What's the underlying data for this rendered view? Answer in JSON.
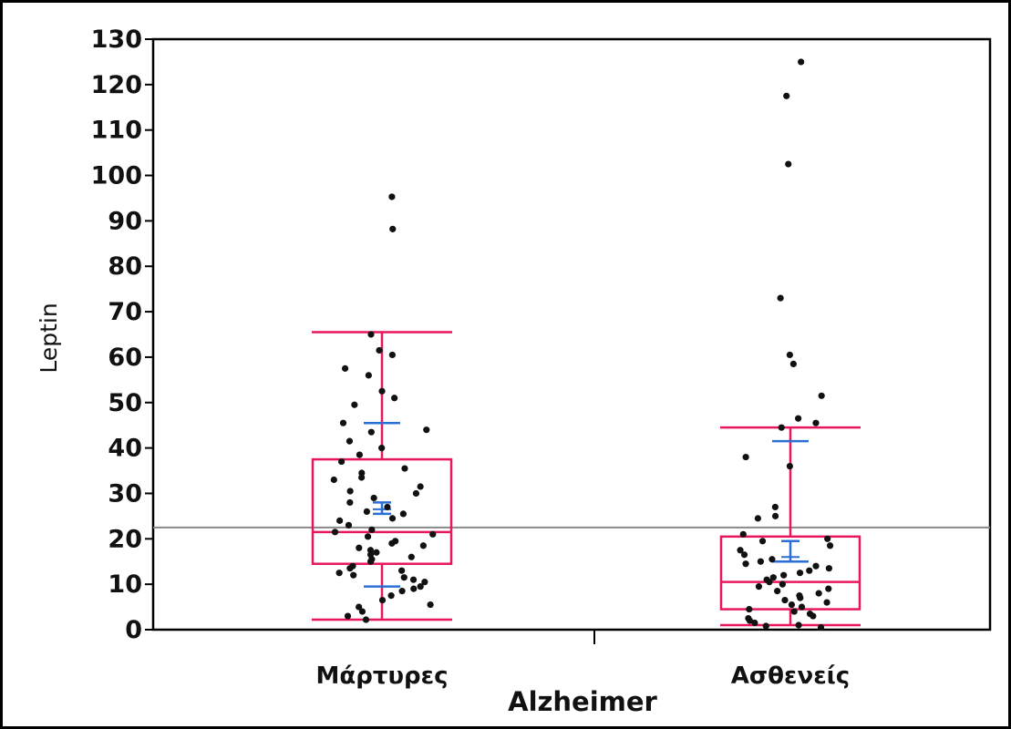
{
  "chart_data": {
    "type": "boxplot",
    "xlabel": "Alzheimer",
    "ylabel": "Leptin",
    "ylim": [
      0,
      130
    ],
    "yticks": [
      0,
      10,
      20,
      30,
      40,
      50,
      60,
      70,
      80,
      90,
      100,
      110,
      120,
      130
    ],
    "categories": [
      "Μάρτυρες",
      "Ασθενείς"
    ],
    "grand_mean": 22.5,
    "grid": false,
    "colors": {
      "box": "#e8175d",
      "mean_ci": "#2b6fd6",
      "points": "#111111",
      "reference_line": "#888888"
    },
    "groups": [
      {
        "name": "Μάρτυρες",
        "box": {
          "q1": 14.5,
          "median": 21.5,
          "q3": 37.5,
          "whisker_low": 2.2,
          "whisker_high": 65.5
        },
        "mean": 26.5,
        "mean_ci": [
          25.5,
          28.0
        ],
        "std_bars": [
          9.5,
          45.5
        ],
        "points": [
          95.3,
          88.2,
          65.0,
          61.5,
          60.5,
          57.5,
          56.0,
          52.5,
          51.0,
          49.5,
          45.5,
          44.0,
          43.5,
          41.5,
          40.0,
          38.5,
          37.0,
          35.5,
          34.5,
          33.5,
          33.0,
          31.5,
          30.5,
          30.0,
          29.0,
          28.0,
          27.0,
          26.0,
          25.5,
          24.5,
          24.0,
          23.0,
          22.0,
          21.5,
          21.0,
          20.5,
          19.5,
          19.0,
          18.5,
          18.0,
          17.5,
          17.0,
          16.5,
          16.0,
          15.5,
          15.0,
          14.0,
          13.5,
          13.0,
          12.5,
          12.0,
          11.5,
          11.0,
          10.5,
          9.5,
          9.0,
          8.5,
          7.5,
          6.5,
          5.5,
          5.0,
          4.0,
          3.0,
          2.2
        ]
      },
      {
        "name": "Ασθενείς",
        "box": {
          "q1": 4.5,
          "median": 10.5,
          "q3": 20.5,
          "whisker_low": 1.0,
          "whisker_high": 44.5
        },
        "mean": 16.0,
        "mean_ci": [
          15.0,
          19.5
        ],
        "std_bars": [
          15.0,
          41.5
        ],
        "points": [
          125.0,
          117.5,
          102.5,
          73.0,
          60.5,
          58.5,
          51.5,
          46.5,
          45.5,
          44.5,
          38.0,
          36.0,
          27.0,
          25.0,
          24.5,
          21.0,
          20.0,
          19.5,
          18.5,
          17.5,
          16.5,
          15.5,
          15.0,
          14.5,
          14.0,
          13.5,
          13.0,
          12.5,
          12.0,
          11.5,
          11.0,
          10.5,
          10.0,
          9.5,
          9.0,
          8.5,
          8.0,
          7.5,
          7.0,
          6.5,
          6.0,
          5.5,
          5.0,
          4.5,
          4.0,
          3.5,
          3.0,
          2.5,
          2.0,
          1.5,
          1.0,
          0.8,
          0.5
        ]
      }
    ]
  }
}
